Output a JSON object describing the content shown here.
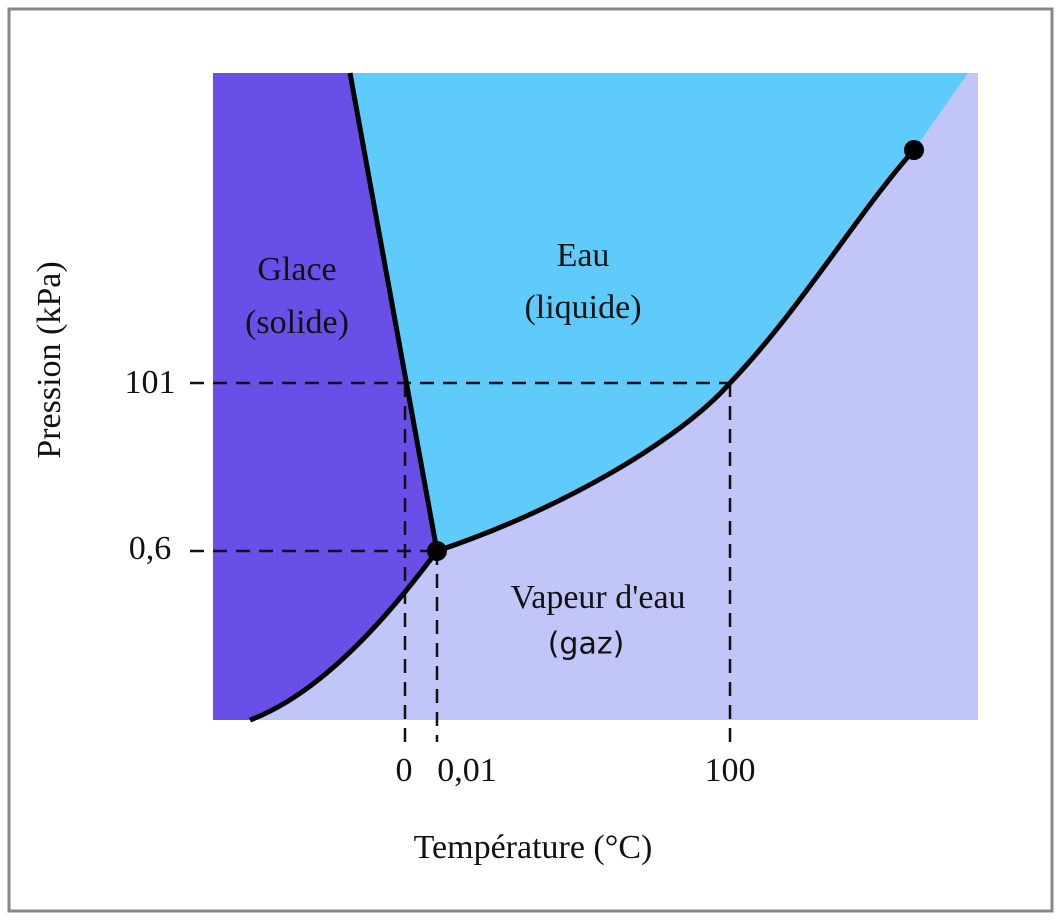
{
  "regions": {
    "solid": [
      "Glace",
      "(solide)"
    ],
    "liquid": [
      "Eau",
      "(liquide)"
    ],
    "gas": [
      "Vapeur d'eau",
      "(gaz)"
    ]
  },
  "axes": {
    "y_title": "Pression (kPa)",
    "x_title": "Température (°C)",
    "y_ticks": [
      "101",
      "0,6"
    ],
    "x_ticks": [
      "0",
      "0,01",
      "100"
    ]
  }
}
